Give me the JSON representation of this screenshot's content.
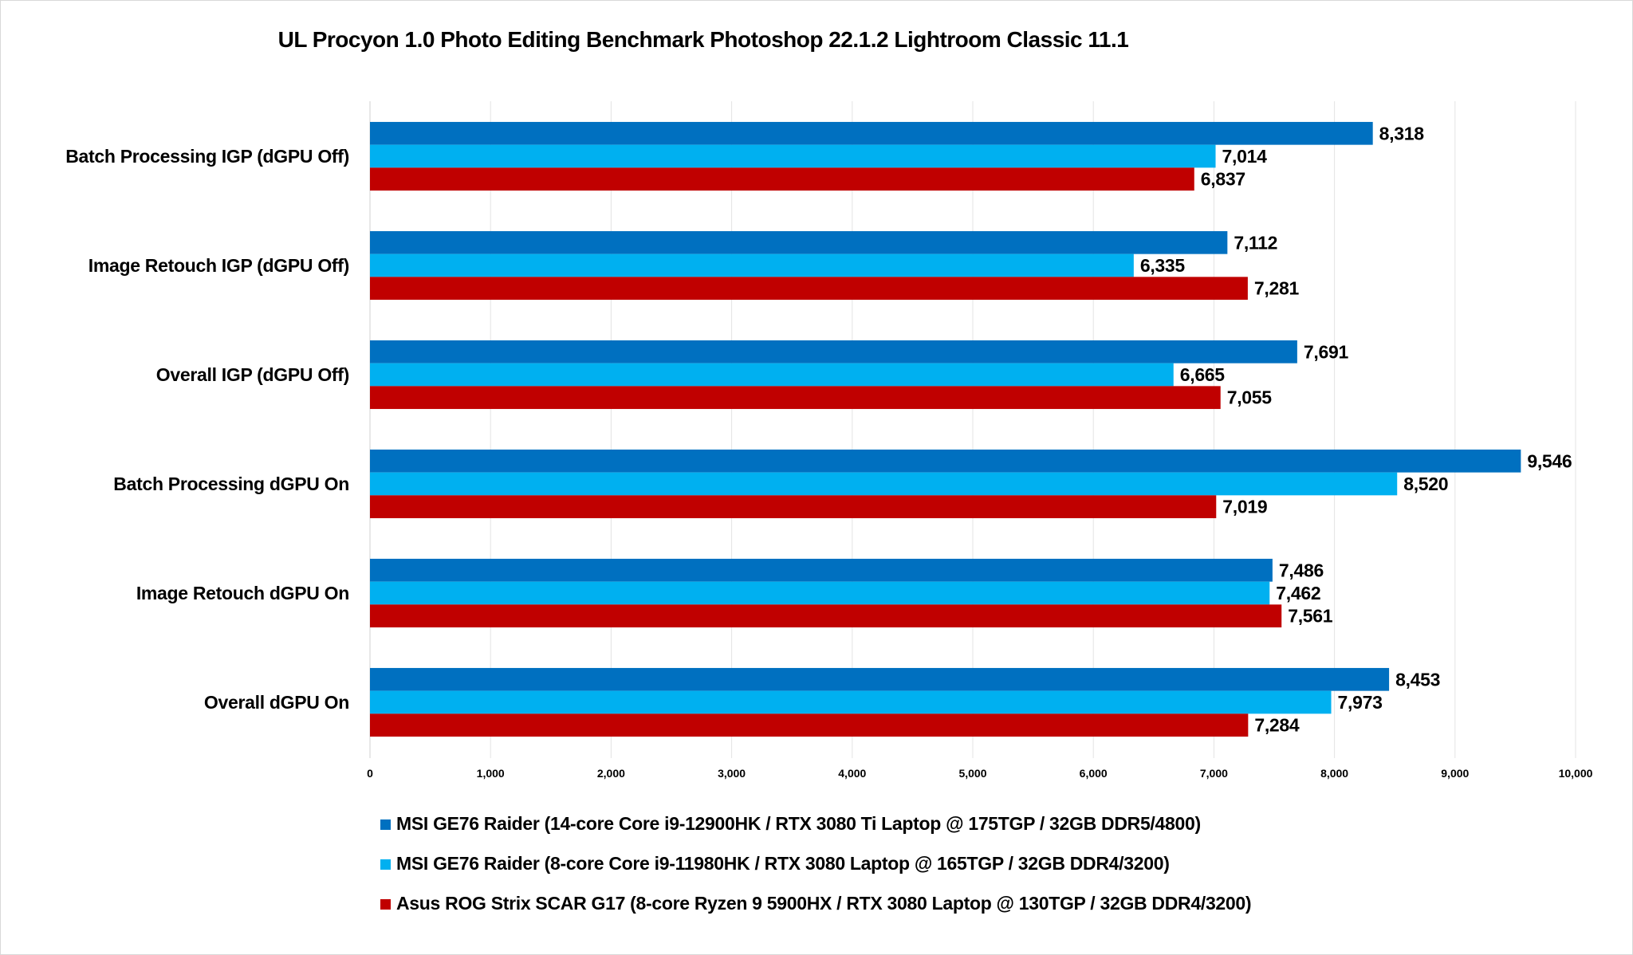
{
  "chart_data": {
    "type": "bar",
    "orientation": "horizontal",
    "title": "UL Procyon 1.0 Photo Editing Benchmark Photoshop 22.1.2 Lightroom Classic 11.1",
    "xlabel": "",
    "ylabel": "",
    "xlim": [
      0,
      10000
    ],
    "ticks": [
      "0",
      "1,000",
      "2,000",
      "3,000",
      "4,000",
      "5,000",
      "6,000",
      "7,000",
      "8,000",
      "9,000",
      "10,000"
    ],
    "grid": true,
    "legend_position": "bottom",
    "categories": [
      "Batch Processing IGP (dGPU Off)",
      "Image Retouch IGP (dGPU Off)",
      "Overall IGP (dGPU Off)",
      "Batch Processing dGPU On",
      "Image Retouch dGPU On",
      "Overall dGPU On"
    ],
    "series": [
      {
        "name": "MSI GE76 Raider (14-core Core i9-12900HK / RTX 3080 Ti Laptop @ 175TGP / 32GB DDR5/4800)",
        "color": "#0070C0",
        "values": [
          8318,
          7112,
          7691,
          9546,
          7486,
          8453
        ],
        "labels": [
          "8,318",
          "7,112",
          "7,691",
          "9,546",
          "7,486",
          "8,453"
        ]
      },
      {
        "name": "MSI GE76 Raider (8-core Core i9-11980HK / RTX 3080 Laptop @ 165TGP / 32GB DDR4/3200)",
        "color": "#00B0F0",
        "values": [
          7014,
          6335,
          6665,
          8520,
          7462,
          7973
        ],
        "labels": [
          "7,014",
          "6,335",
          "6,665",
          "8,520",
          "7,462",
          "7,973"
        ]
      },
      {
        "name": "Asus ROG Strix SCAR G17 (8-core Ryzen 9 5900HX / RTX 3080 Laptop @ 130TGP / 32GB DDR4/3200)",
        "color": "#C00000",
        "values": [
          6837,
          7281,
          7055,
          7019,
          7561,
          7284
        ],
        "labels": [
          "6,837",
          "7,281",
          "7,055",
          "7,019",
          "7,561",
          "7,284"
        ]
      }
    ]
  }
}
